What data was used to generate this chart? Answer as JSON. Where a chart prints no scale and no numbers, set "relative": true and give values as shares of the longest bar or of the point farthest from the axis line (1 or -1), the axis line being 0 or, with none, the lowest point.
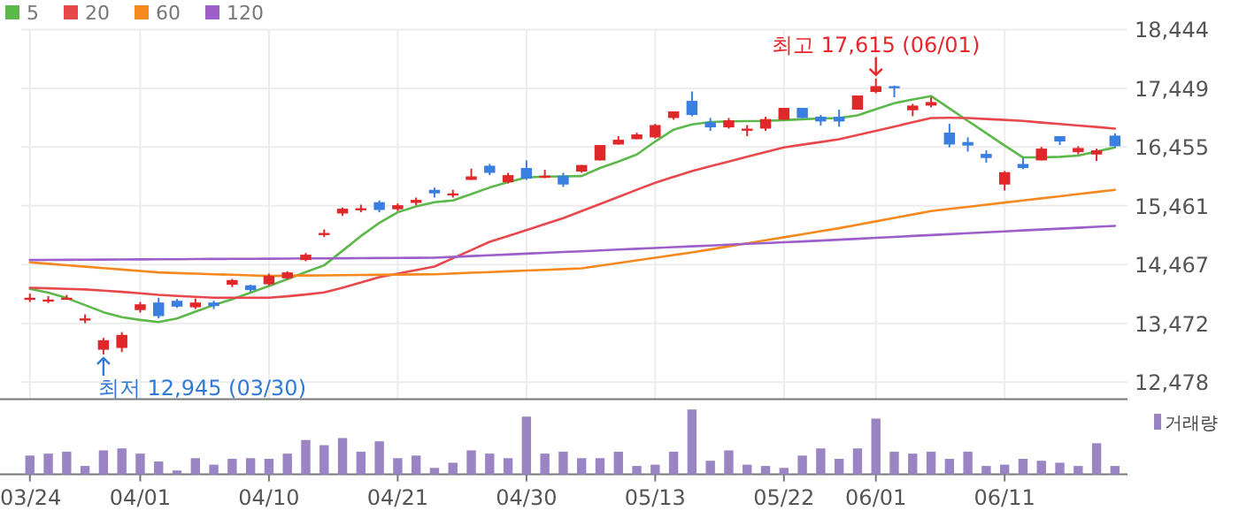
{
  "chart_data": [
    {
      "type": "candlestick",
      "categories": [
        "03/24",
        null,
        null,
        null,
        null,
        null,
        "04/01",
        null,
        null,
        null,
        null,
        null,
        null,
        "04/10",
        null,
        null,
        null,
        null,
        null,
        null,
        "04/21",
        null,
        null,
        null,
        null,
        null,
        null,
        "04/30",
        null,
        null,
        null,
        null,
        null,
        null,
        "05/13",
        null,
        null,
        null,
        null,
        null,
        null,
        "05/22",
        null,
        null,
        null,
        null,
        "06/01",
        null,
        null,
        null,
        null,
        null,
        null,
        "06/11",
        null,
        null,
        null,
        null,
        null,
        null
      ],
      "ohlc": [
        [
          13890,
          13974,
          13833,
          13905
        ],
        [
          13860,
          13935,
          13815,
          13875
        ],
        [
          13875,
          13953,
          13875,
          13905
        ],
        [
          13545,
          13624,
          13474,
          13555
        ],
        [
          13025,
          13225,
          12945,
          13186
        ],
        [
          13055,
          13324,
          12986,
          13276
        ],
        [
          13696,
          13833,
          13654,
          13794
        ],
        [
          13824,
          13905,
          13555,
          13594
        ],
        [
          13854,
          13884,
          13734,
          13755
        ],
        [
          13743,
          13893,
          13714,
          13824
        ],
        [
          13824,
          13854,
          13714,
          13764
        ],
        [
          14124,
          14223,
          14085,
          14204
        ],
        [
          14115,
          14124,
          14004,
          14034
        ],
        [
          14133,
          14313,
          14115,
          14274
        ],
        [
          14234,
          14353,
          14214,
          14334
        ],
        [
          14543,
          14663,
          14523,
          14633
        ],
        [
          14990,
          15061,
          14932,
          15001
        ],
        [
          15331,
          15432,
          15292,
          15411
        ],
        [
          15405,
          15480,
          15351,
          15420
        ],
        [
          15522,
          15552,
          15351,
          15390
        ],
        [
          15402,
          15500,
          15372,
          15471
        ],
        [
          15510,
          15600,
          15471,
          15561
        ],
        [
          15731,
          15770,
          15600,
          15671
        ],
        [
          15660,
          15731,
          15600,
          15671
        ],
        [
          15899,
          16091,
          15899,
          15959
        ],
        [
          16139,
          16169,
          15980,
          16019
        ],
        [
          15860,
          16019,
          15839,
          15980
        ],
        [
          16100,
          16229,
          15899,
          15920
        ],
        [
          15955,
          16070,
          15929,
          15970
        ],
        [
          15970,
          16019,
          15780,
          15821
        ],
        [
          16040,
          16151,
          16019,
          16151
        ],
        [
          16229,
          16489,
          16229,
          16489
        ],
        [
          16498,
          16639,
          16498,
          16579
        ],
        [
          16588,
          16699,
          16588,
          16669
        ],
        [
          16618,
          16848,
          16600,
          16827
        ],
        [
          16947,
          17058,
          16917,
          17058
        ],
        [
          17237,
          17396,
          16977,
          16998
        ],
        [
          16878,
          16947,
          16728,
          16788
        ],
        [
          16788,
          16947,
          16767,
          16908
        ],
        [
          16755,
          16827,
          16639,
          16767
        ],
        [
          16767,
          16968,
          16728,
          16929
        ],
        [
          16917,
          17118,
          16917,
          17118
        ],
        [
          17118,
          17118,
          16947,
          16947
        ],
        [
          16968,
          16998,
          16818,
          16888
        ],
        [
          16968,
          17088,
          16798,
          16888
        ],
        [
          17088,
          17327,
          17088,
          17327
        ],
        [
          17387,
          17615,
          17366,
          17486
        ],
        [
          17486,
          17496,
          17297,
          17476
        ],
        [
          17078,
          17187,
          16977,
          17157
        ],
        [
          17157,
          17297,
          17127,
          17217
        ],
        [
          16699,
          16848,
          16450,
          16498
        ],
        [
          16540,
          16619,
          16378,
          16480
        ],
        [
          16339,
          16399,
          16190,
          16270
        ],
        [
          15821,
          16049,
          15719,
          16030
        ],
        [
          16169,
          16270,
          16080,
          16100
        ],
        [
          16229,
          16459,
          16229,
          16429
        ],
        [
          16639,
          16639,
          16489,
          16549
        ],
        [
          16369,
          16469,
          16329,
          16439
        ],
        [
          16329,
          16429,
          16220,
          16399
        ],
        [
          16649,
          16689,
          16450,
          16469
        ]
      ],
      "series": [
        {
          "name": "5",
          "type": "line",
          "color": "#5cb84a",
          "values": [
            14054,
            13990,
            13900,
            13780,
            13660,
            13576,
            13530,
            13495,
            13555,
            13670,
            13780,
            13880,
            13990,
            14103,
            14220,
            14340,
            14453,
            14700,
            14950,
            15171,
            15351,
            15450,
            15522,
            15552,
            15660,
            15770,
            15860,
            15941,
            15955,
            15959,
            15965,
            16100,
            16210,
            16330,
            16549,
            16749,
            16839,
            16878,
            16890,
            16895,
            16898,
            16910,
            16925,
            16938,
            16947,
            16990,
            17097,
            17198,
            17260,
            17318,
            17108,
            16898,
            16689,
            16480,
            16280,
            16280,
            16290,
            16310,
            16380,
            16450
          ]
        },
        {
          "name": "20",
          "type": "line",
          "color": "#e8474b",
          "values": [
            14074,
            14065,
            14055,
            14045,
            14025,
            14005,
            13980,
            13954,
            13935,
            13920,
            13905,
            13905,
            13905,
            13905,
            13930,
            13960,
            13994,
            14075,
            14165,
            14253,
            14313,
            14373,
            14433,
            14573,
            14712,
            14851,
            14950,
            15050,
            15150,
            15252,
            15372,
            15492,
            15612,
            15732,
            15851,
            15950,
            16049,
            16130,
            16210,
            16290,
            16370,
            16450,
            16495,
            16540,
            16588,
            16658,
            16728,
            16800,
            16875,
            16947,
            16950,
            16947,
            16930,
            16915,
            16898,
            16870,
            16845,
            16820,
            16795,
            16767
          ]
        },
        {
          "name": "60",
          "type": "line",
          "color": "#f5891f",
          "values": [
            14504,
            14480,
            14455,
            14431,
            14406,
            14382,
            14357,
            14333,
            14323,
            14313,
            14303,
            14294,
            14284,
            14274,
            14278,
            14281,
            14284,
            14287,
            14290,
            14293,
            14297,
            14300,
            14303,
            14315,
            14328,
            14340,
            14352,
            14365,
            14377,
            14390,
            14402,
            14447,
            14492,
            14537,
            14582,
            14627,
            14672,
            14723,
            14775,
            14826,
            14877,
            14928,
            14980,
            15031,
            15082,
            15140,
            15198,
            15256,
            15314,
            15372,
            15408,
            15444,
            15480,
            15515,
            15551,
            15587,
            15623,
            15659,
            15695,
            15731
          ]
        },
        {
          "name": "120",
          "type": "line",
          "color": "#9c5fc9",
          "values": [
            14543,
            14545,
            14547,
            14548,
            14550,
            14552,
            14554,
            14555,
            14557,
            14559,
            14561,
            14563,
            14564,
            14566,
            14568,
            14570,
            14571,
            14573,
            14575,
            14577,
            14579,
            14580,
            14582,
            14596,
            14610,
            14623,
            14637,
            14651,
            14665,
            14679,
            14692,
            14706,
            14720,
            14734,
            14748,
            14761,
            14775,
            14789,
            14803,
            14817,
            14830,
            14844,
            14858,
            14872,
            14888,
            14903,
            14919,
            14934,
            14950,
            14966,
            14981,
            14997,
            15012,
            15028,
            15044,
            15059,
            15075,
            15090,
            15106,
            15121
          ]
        }
      ],
      "ylim": [
        12190,
        18444
      ],
      "yticks": [
        {
          "value": 12478,
          "label": "12,478"
        },
        {
          "value": 13472,
          "label": "13,472"
        },
        {
          "value": 14467,
          "label": "14,467"
        },
        {
          "value": 15461,
          "label": "15,461"
        },
        {
          "value": 16455,
          "label": "16,455"
        },
        {
          "value": 17449,
          "label": "17,449"
        },
        {
          "value": 18444,
          "label": "18,444"
        }
      ],
      "grid": true,
      "legend": "top left",
      "tick_labels": "y",
      "annotations": [
        {
          "text": "최고 17,615 (06/01)",
          "x": "06/01",
          "y": 17615
        },
        "최저 12,945 (03/30)"
      ]
    },
    {
      "type": "bar",
      "relative": true,
      "legend": "top right",
      "categories": [
        "03/24",
        null,
        null,
        null,
        null,
        null,
        "04/01",
        null,
        null,
        null,
        null,
        null,
        null,
        "04/10",
        null,
        null,
        null,
        null,
        null,
        null,
        "04/21",
        null,
        null,
        null,
        null,
        null,
        null,
        "04/30",
        null,
        null,
        null,
        null,
        null,
        null,
        "05/13",
        null,
        null,
        null,
        null,
        null,
        null,
        "05/22",
        null,
        null,
        null,
        null,
        "06/01",
        null,
        null,
        null,
        null,
        null,
        null,
        "06/11",
        null,
        null,
        null,
        null,
        null,
        null
      ],
      "series": [
        {
          "name": "거래량",
          "color": "#9b84c4",
          "values": [
            0.29,
            0.32,
            0.35,
            0.13,
            0.37,
            0.4,
            0.32,
            0.2,
            0.06,
            0.25,
            0.15,
            0.24,
            0.25,
            0.24,
            0.32,
            0.53,
            0.45,
            0.56,
            0.35,
            0.51,
            0.25,
            0.29,
            0.1,
            0.18,
            0.37,
            0.32,
            0.25,
            0.89,
            0.32,
            0.35,
            0.25,
            0.25,
            0.35,
            0.13,
            0.15,
            0.35,
            1,
            0.21,
            0.37,
            0.15,
            0.13,
            0.1,
            0.29,
            0.4,
            0.24,
            0.4,
            0.86,
            0.35,
            0.32,
            0.35,
            0.24,
            0.35,
            0.13,
            0.15,
            0.24,
            0.21,
            0.18,
            0.13,
            0.48,
            0.13
          ]
        }
      ]
    }
  ]
}
